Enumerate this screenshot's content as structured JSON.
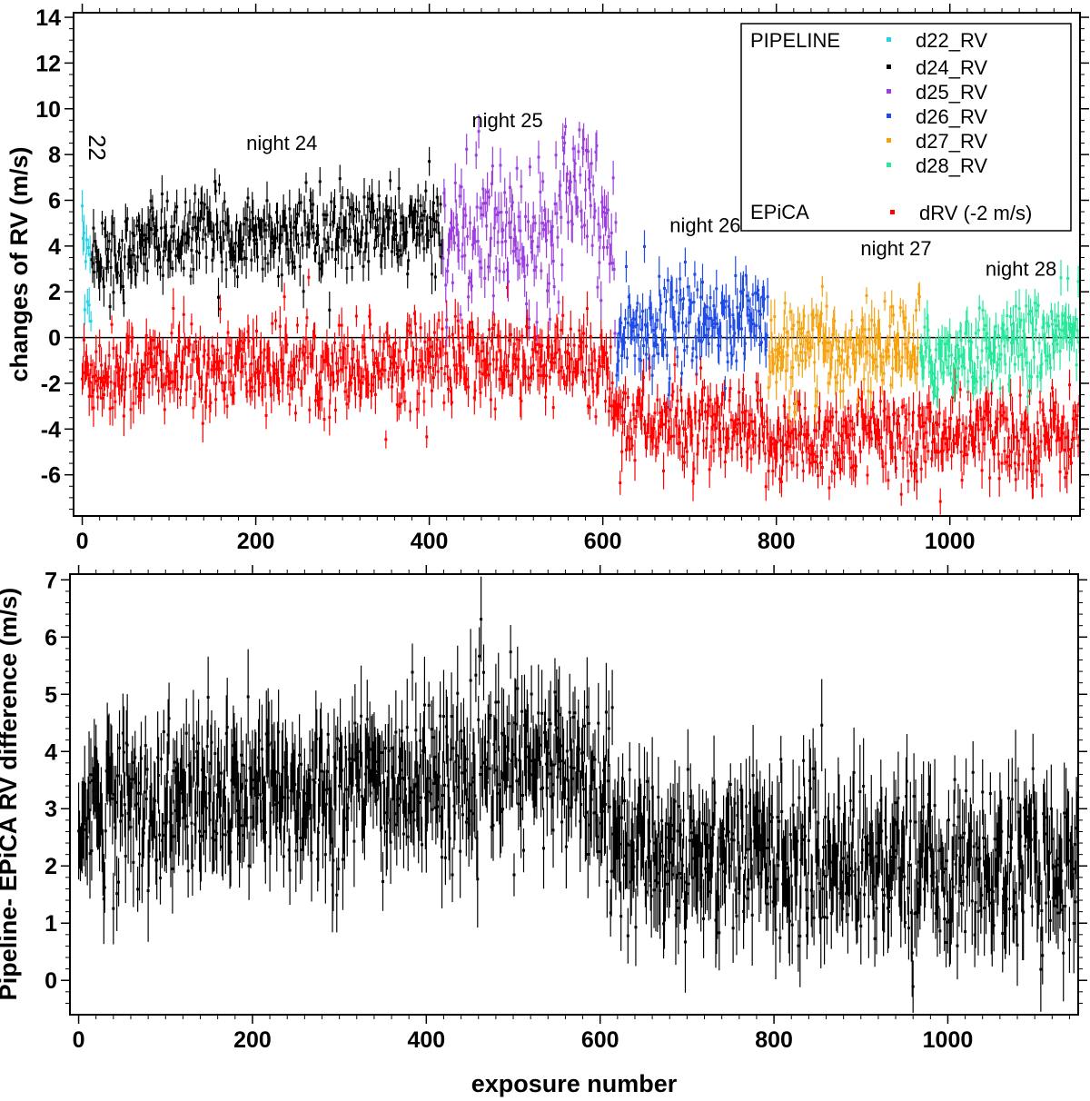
{
  "chart_data": [
    {
      "type": "scatter",
      "title": "",
      "xlabel": "",
      "ylabel": "changes of RV (m/s)",
      "xlim": [
        -10,
        1150
      ],
      "ylim": [
        -7.8,
        14.2
      ],
      "x_ticks": [
        0,
        200,
        400,
        600,
        800,
        1000
      ],
      "y_ticks": [
        -6,
        -4,
        -2,
        0,
        2,
        4,
        6,
        8,
        10,
        12,
        14
      ],
      "zero_line": true,
      "error_bars": true,
      "legend_position": "top-right",
      "legend": {
        "groups": [
          {
            "label": "PIPELINE",
            "entries": [
              {
                "name": "d22_RV",
                "color": "#22d3e8"
              },
              {
                "name": "d24_RV",
                "color": "#000000"
              },
              {
                "name": "d25_RV",
                "color": "#9a3ee0"
              },
              {
                "name": "d26_RV",
                "color": "#1f4be8"
              },
              {
                "name": "d27_RV",
                "color": "#f5a20f"
              },
              {
                "name": "d28_RV",
                "color": "#26e89a"
              }
            ]
          },
          {
            "label": "EPiCA",
            "entries": [
              {
                "name": "dRV (-2 m/s)",
                "color": "#ff0000"
              }
            ]
          }
        ]
      },
      "series": [
        {
          "name": "d22_RV",
          "color": "#22d3e8",
          "x_range": [
            0,
            10
          ],
          "mean": 2.8,
          "scatter": 1.8,
          "trend": [
            [
              0,
              5.2
            ],
            [
              10,
              1.2
            ]
          ]
        },
        {
          "name": "d24_RV",
          "color": "#000000",
          "x_range": [
            11,
            415
          ],
          "mean": 4.4,
          "scatter": 0.9,
          "trend": [
            [
              11,
              3.2
            ],
            [
              100,
              4.4
            ],
            [
              300,
              4.6
            ],
            [
              415,
              4.8
            ]
          ]
        },
        {
          "name": "d25_RV",
          "color": "#9a3ee0",
          "x_range": [
            416,
            615
          ],
          "mean": 4.8,
          "scatter": 1.6,
          "trend": [
            [
              416,
              4.6
            ],
            [
              540,
              4.8
            ],
            [
              570,
              8.0
            ],
            [
              615,
              3.5
            ]
          ]
        },
        {
          "name": "d26_RV",
          "color": "#1f4be8",
          "x_range": [
            616,
            790
          ],
          "mean": 0.8,
          "scatter": 1.0,
          "trend": [
            [
              616,
              0.5
            ],
            [
              790,
              0.9
            ]
          ]
        },
        {
          "name": "d27_RV",
          "color": "#f5a20f",
          "x_range": [
            791,
            965
          ],
          "mean": -0.6,
          "scatter": 1.0,
          "trend": [
            [
              791,
              -0.8
            ],
            [
              965,
              -0.3
            ]
          ]
        },
        {
          "name": "d28_RV",
          "color": "#26e89a",
          "x_range": [
            966,
            1150
          ],
          "mean": -0.5,
          "scatter": 0.9,
          "trend": [
            [
              966,
              -1.0
            ],
            [
              1150,
              0.2
            ]
          ]
        },
        {
          "name": "dRV (-2 m/s)",
          "color": "#ff0000",
          "x_range": [
            0,
            1150
          ],
          "mean": -1.8,
          "scatter": 1.0,
          "trend": [
            [
              0,
              -1.5
            ],
            [
              400,
              -1.0
            ],
            [
              600,
              -1.2
            ],
            [
              620,
              -3.5
            ],
            [
              800,
              -4.5
            ],
            [
              1150,
              -4.2
            ]
          ]
        }
      ],
      "annotations": [
        {
          "text": "22",
          "x": 8,
          "y": 8.3
        },
        {
          "text": "night 24",
          "x": 230,
          "y": 8.2
        },
        {
          "text": "night 25",
          "x": 490,
          "y": 9.2
        },
        {
          "text": "night 26",
          "x": 718,
          "y": 4.6
        },
        {
          "text": "night 27",
          "x": 938,
          "y": 3.6
        },
        {
          "text": "night 28",
          "x": 1082,
          "y": 2.7
        }
      ]
    },
    {
      "type": "scatter",
      "title": "",
      "xlabel": "exposure number",
      "ylabel": "Pipeline- EPiCA RV difference  (m/s)",
      "xlim": [
        -10,
        1150
      ],
      "ylim": [
        -0.6,
        7.1
      ],
      "x_ticks": [
        0,
        200,
        400,
        600,
        800,
        1000
      ],
      "y_ticks": [
        0,
        1,
        2,
        3,
        4,
        5,
        6,
        7
      ],
      "error_bars": true,
      "series": [
        {
          "name": "Pipeline - EPiCA",
          "color": "#000000",
          "x_range": [
            0,
            1150
          ],
          "mean": 2.8,
          "scatter": 0.7,
          "trend": [
            [
              0,
              3.0
            ],
            [
              200,
              3.2
            ],
            [
              400,
              3.5
            ],
            [
              540,
              3.8
            ],
            [
              610,
              3.5
            ],
            [
              620,
              2.3
            ],
            [
              800,
              2.2
            ],
            [
              1000,
              2.0
            ],
            [
              1150,
              2.0
            ]
          ]
        }
      ]
    }
  ]
}
